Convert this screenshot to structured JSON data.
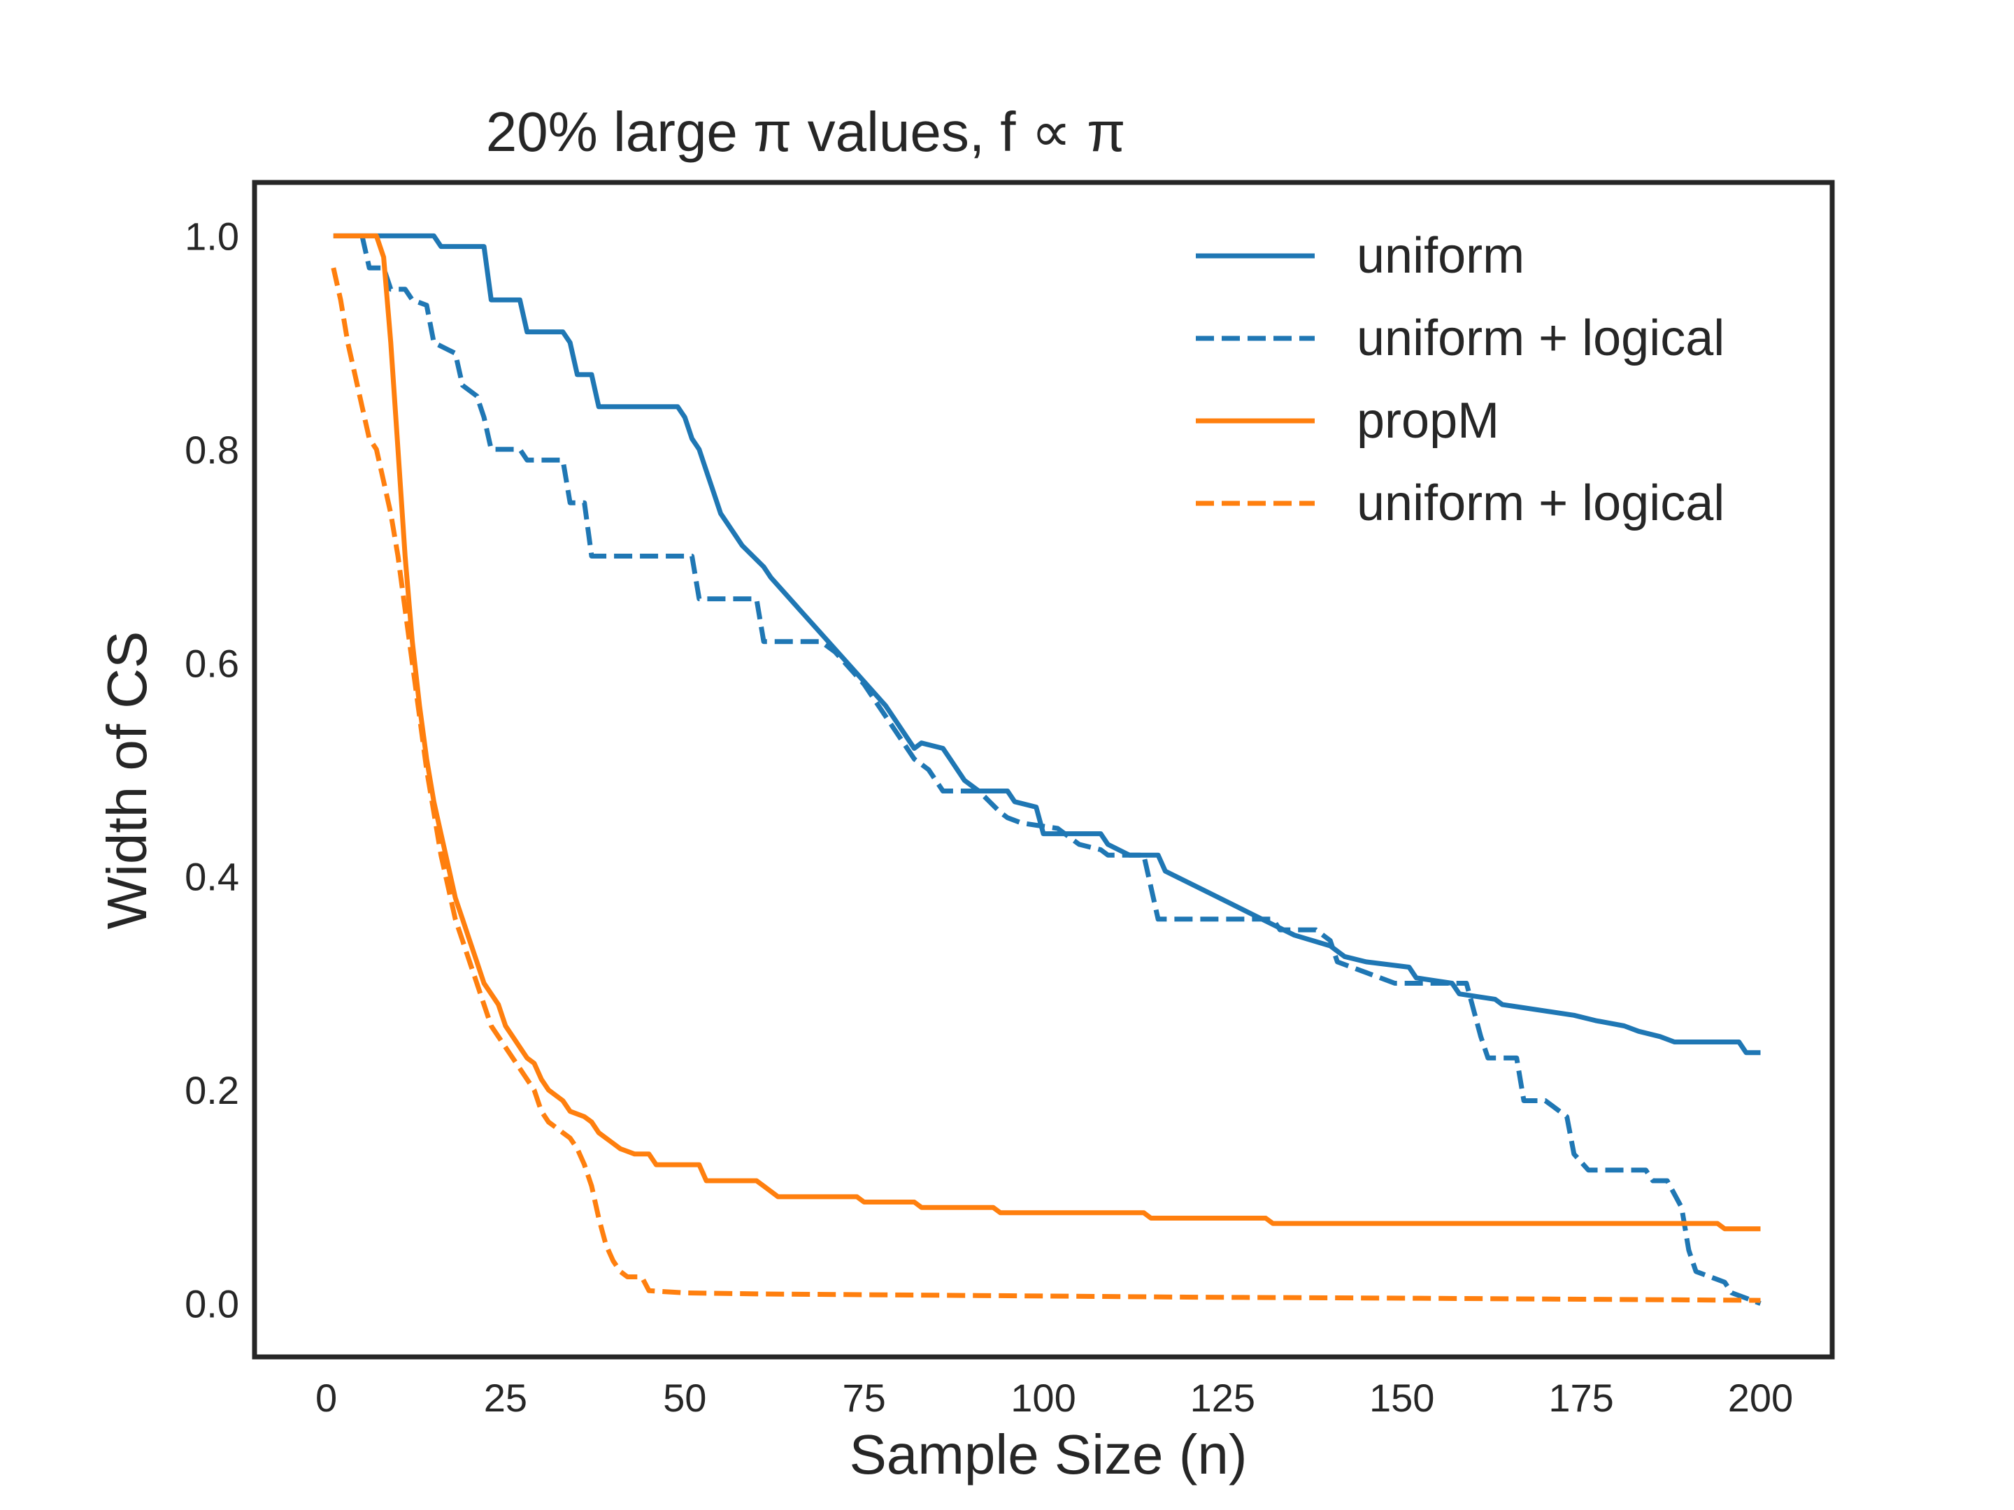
{
  "chart_data": {
    "type": "line",
    "title": "20% large π values,    f ∝ π",
    "xlabel": "Sample Size (n)",
    "ylabel": "Width of CS",
    "xlim": [
      -10,
      210
    ],
    "ylim": [
      -0.05,
      1.05
    ],
    "xticks": [
      0,
      25,
      50,
      75,
      100,
      125,
      150,
      175,
      200
    ],
    "yticks": [
      0.0,
      0.2,
      0.4,
      0.6,
      0.8,
      1.0
    ],
    "xtick_labels": [
      "0",
      "25",
      "50",
      "75",
      "100",
      "125",
      "150",
      "175",
      "200"
    ],
    "ytick_labels": [
      "0.0",
      "0.2",
      "0.4",
      "0.6",
      "0.8",
      "1.0"
    ],
    "grid": false,
    "legend_position": "top-right",
    "series": [
      {
        "name": "uniform",
        "color": "#1f77b4",
        "style": "solid",
        "points": [
          [
            1,
            1.0
          ],
          [
            15,
            1.0
          ],
          [
            16,
            0.99
          ],
          [
            22,
            0.99
          ],
          [
            23,
            0.94
          ],
          [
            27,
            0.94
          ],
          [
            28,
            0.91
          ],
          [
            33,
            0.91
          ],
          [
            34,
            0.9
          ],
          [
            35,
            0.87
          ],
          [
            37,
            0.87
          ],
          [
            38,
            0.84
          ],
          [
            49,
            0.84
          ],
          [
            50,
            0.83
          ],
          [
            51,
            0.81
          ],
          [
            52,
            0.8
          ],
          [
            53,
            0.78
          ],
          [
            54,
            0.76
          ],
          [
            55,
            0.74
          ],
          [
            57,
            0.72
          ],
          [
            58,
            0.71
          ],
          [
            61,
            0.69
          ],
          [
            62,
            0.68
          ],
          [
            66,
            0.65
          ],
          [
            70,
            0.62
          ],
          [
            74,
            0.59
          ],
          [
            78,
            0.56
          ],
          [
            82,
            0.52
          ],
          [
            83,
            0.525
          ],
          [
            86,
            0.52
          ],
          [
            87,
            0.51
          ],
          [
            89,
            0.49
          ],
          [
            91,
            0.48
          ],
          [
            95,
            0.48
          ],
          [
            96,
            0.47
          ],
          [
            99,
            0.465
          ],
          [
            100,
            0.44
          ],
          [
            108,
            0.44
          ],
          [
            109,
            0.43
          ],
          [
            112,
            0.42
          ],
          [
            116,
            0.42
          ],
          [
            117,
            0.405
          ],
          [
            120,
            0.395
          ],
          [
            123,
            0.385
          ],
          [
            126,
            0.375
          ],
          [
            129,
            0.365
          ],
          [
            132,
            0.355
          ],
          [
            135,
            0.345
          ],
          [
            140,
            0.335
          ],
          [
            142,
            0.325
          ],
          [
            145,
            0.32
          ],
          [
            151,
            0.315
          ],
          [
            152,
            0.305
          ],
          [
            157,
            0.3
          ],
          [
            158,
            0.29
          ],
          [
            163,
            0.285
          ],
          [
            164,
            0.28
          ],
          [
            174,
            0.27
          ],
          [
            177,
            0.265
          ],
          [
            181,
            0.26
          ],
          [
            183,
            0.255
          ],
          [
            186,
            0.25
          ],
          [
            188,
            0.245
          ],
          [
            197,
            0.245
          ],
          [
            198,
            0.235
          ],
          [
            200,
            0.235
          ]
        ]
      },
      {
        "name": "uniform + logical",
        "color": "#1f77b4",
        "style": "dashed",
        "points": [
          [
            5,
            1.0
          ],
          [
            6,
            0.97
          ],
          [
            8,
            0.97
          ],
          [
            9,
            0.95
          ],
          [
            11,
            0.95
          ],
          [
            12,
            0.94
          ],
          [
            14,
            0.935
          ],
          [
            15,
            0.9
          ],
          [
            18,
            0.89
          ],
          [
            19,
            0.86
          ],
          [
            21,
            0.85
          ],
          [
            22,
            0.83
          ],
          [
            23,
            0.8
          ],
          [
            27,
            0.8
          ],
          [
            28,
            0.79
          ],
          [
            33,
            0.79
          ],
          [
            34,
            0.75
          ],
          [
            36,
            0.75
          ],
          [
            37,
            0.7
          ],
          [
            51,
            0.7
          ],
          [
            52,
            0.66
          ],
          [
            60,
            0.66
          ],
          [
            61,
            0.62
          ],
          [
            69,
            0.62
          ],
          [
            71,
            0.61
          ],
          [
            75,
            0.58
          ],
          [
            79,
            0.54
          ],
          [
            82,
            0.51
          ],
          [
            84,
            0.5
          ],
          [
            86,
            0.48
          ],
          [
            91,
            0.48
          ],
          [
            94,
            0.46
          ],
          [
            95,
            0.455
          ],
          [
            97,
            0.45
          ],
          [
            102,
            0.445
          ],
          [
            104,
            0.435
          ],
          [
            105,
            0.43
          ],
          [
            108,
            0.425
          ],
          [
            109,
            0.42
          ],
          [
            114,
            0.42
          ],
          [
            116,
            0.36
          ],
          [
            132,
            0.36
          ],
          [
            133,
            0.35
          ],
          [
            138,
            0.35
          ],
          [
            140,
            0.34
          ],
          [
            141,
            0.32
          ],
          [
            145,
            0.31
          ],
          [
            149,
            0.3
          ],
          [
            159,
            0.3
          ],
          [
            161,
            0.25
          ],
          [
            162,
            0.23
          ],
          [
            166,
            0.23
          ],
          [
            167,
            0.19
          ],
          [
            170,
            0.19
          ],
          [
            171,
            0.185
          ],
          [
            173,
            0.175
          ],
          [
            174,
            0.14
          ],
          [
            176,
            0.125
          ],
          [
            184,
            0.125
          ],
          [
            185,
            0.115
          ],
          [
            187,
            0.115
          ],
          [
            189,
            0.09
          ],
          [
            190,
            0.05
          ],
          [
            191,
            0.03
          ],
          [
            195,
            0.02
          ],
          [
            196,
            0.01
          ],
          [
            200,
            0.0
          ]
        ]
      },
      {
        "name": "propM",
        "color": "#ff7f0e",
        "style": "solid",
        "points": [
          [
            1,
            1.0
          ],
          [
            7,
            1.0
          ],
          [
            8,
            0.98
          ],
          [
            9,
            0.9
          ],
          [
            10,
            0.8
          ],
          [
            11,
            0.7
          ],
          [
            12,
            0.62
          ],
          [
            13,
            0.56
          ],
          [
            14,
            0.51
          ],
          [
            15,
            0.47
          ],
          [
            16,
            0.44
          ],
          [
            17,
            0.41
          ],
          [
            18,
            0.38
          ],
          [
            19,
            0.36
          ],
          [
            20,
            0.34
          ],
          [
            21,
            0.32
          ],
          [
            22,
            0.3
          ],
          [
            23,
            0.29
          ],
          [
            24,
            0.28
          ],
          [
            25,
            0.26
          ],
          [
            26,
            0.25
          ],
          [
            27,
            0.24
          ],
          [
            28,
            0.23
          ],
          [
            29,
            0.225
          ],
          [
            30,
            0.21
          ],
          [
            31,
            0.2
          ],
          [
            33,
            0.19
          ],
          [
            34,
            0.18
          ],
          [
            36,
            0.175
          ],
          [
            37,
            0.17
          ],
          [
            38,
            0.16
          ],
          [
            40,
            0.15
          ],
          [
            41,
            0.145
          ],
          [
            43,
            0.14
          ],
          [
            45,
            0.14
          ],
          [
            46,
            0.13
          ],
          [
            52,
            0.13
          ],
          [
            53,
            0.115
          ],
          [
            60,
            0.115
          ],
          [
            61,
            0.11
          ],
          [
            63,
            0.1
          ],
          [
            74,
            0.1
          ],
          [
            75,
            0.095
          ],
          [
            82,
            0.095
          ],
          [
            83,
            0.09
          ],
          [
            93,
            0.09
          ],
          [
            94,
            0.085
          ],
          [
            114,
            0.085
          ],
          [
            115,
            0.08
          ],
          [
            131,
            0.08
          ],
          [
            132,
            0.075
          ],
          [
            194,
            0.075
          ],
          [
            195,
            0.07
          ],
          [
            200,
            0.07
          ]
        ]
      },
      {
        "name": "uniform + logical",
        "color": "#ff7f0e",
        "style": "dashed",
        "points": [
          [
            1,
            0.97
          ],
          [
            2,
            0.94
          ],
          [
            3,
            0.9
          ],
          [
            4,
            0.87
          ],
          [
            5,
            0.84
          ],
          [
            6,
            0.81
          ],
          [
            7,
            0.8
          ],
          [
            8,
            0.77
          ],
          [
            9,
            0.74
          ],
          [
            10,
            0.7
          ],
          [
            11,
            0.65
          ],
          [
            12,
            0.6
          ],
          [
            13,
            0.55
          ],
          [
            14,
            0.5
          ],
          [
            15,
            0.46
          ],
          [
            16,
            0.42
          ],
          [
            17,
            0.39
          ],
          [
            18,
            0.36
          ],
          [
            19,
            0.34
          ],
          [
            20,
            0.32
          ],
          [
            21,
            0.3
          ],
          [
            22,
            0.28
          ],
          [
            23,
            0.26
          ],
          [
            24,
            0.25
          ],
          [
            25,
            0.24
          ],
          [
            26,
            0.23
          ],
          [
            27,
            0.22
          ],
          [
            28,
            0.21
          ],
          [
            29,
            0.2
          ],
          [
            30,
            0.18
          ],
          [
            31,
            0.17
          ],
          [
            32,
            0.165
          ],
          [
            33,
            0.16
          ],
          [
            34,
            0.155
          ],
          [
            35,
            0.145
          ],
          [
            36,
            0.13
          ],
          [
            37,
            0.11
          ],
          [
            38,
            0.08
          ],
          [
            39,
            0.055
          ],
          [
            40,
            0.04
          ],
          [
            41,
            0.03
          ],
          [
            42,
            0.025
          ],
          [
            44,
            0.025
          ],
          [
            45,
            0.012
          ],
          [
            50,
            0.01
          ],
          [
            60,
            0.009
          ],
          [
            80,
            0.008
          ],
          [
            100,
            0.007
          ],
          [
            120,
            0.006
          ],
          [
            150,
            0.005
          ],
          [
            175,
            0.004
          ],
          [
            200,
            0.003
          ]
        ]
      }
    ]
  }
}
